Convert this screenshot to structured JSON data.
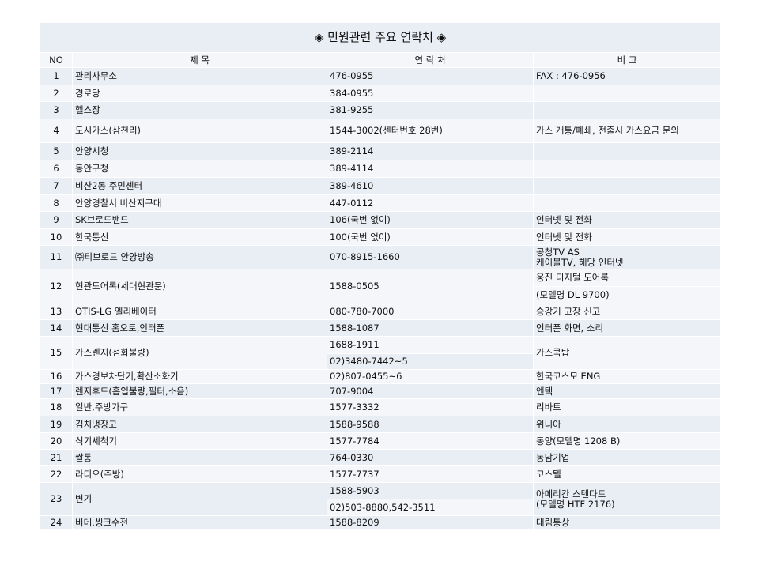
{
  "title": "◈  민원관련 주요 연락처  ◈",
  "headers": {
    "no": "NO",
    "title": "제     목",
    "contact": "연 락 처",
    "note": "비     고"
  },
  "rows": [
    {
      "no": "1",
      "title": "관리사무소",
      "contact": "476-0955",
      "note": "FAX : 476-0956"
    },
    {
      "no": "2",
      "title": "경로당",
      "contact": "384-0955",
      "note": ""
    },
    {
      "no": "3",
      "title": "헬스장",
      "contact": "381-9255",
      "note": ""
    },
    {
      "no": "4",
      "title": "도시가스(삼천리)",
      "contact": "1544-3002(센터번호  28번)",
      "note": "가스 개통/폐쇄, 전출시 가스요금 문의"
    },
    {
      "no": "5",
      "title": "안양시청",
      "contact": "389-2114",
      "note": ""
    },
    {
      "no": "6",
      "title": "동안구청",
      "contact": "389-4114",
      "note": ""
    },
    {
      "no": "7",
      "title": "비산2동 주민센터",
      "contact": "389-4610",
      "note": ""
    },
    {
      "no": "8",
      "title": "안양경찰서 비산지구대",
      "contact": "447-0112",
      "note": ""
    },
    {
      "no": "9",
      "title": "SK브로드밴드",
      "contact": "106(국번 없이)",
      "note": "인터넷 및 전화"
    },
    {
      "no": "10",
      "title": "한국통신",
      "contact": "100(국번 없이)",
      "note": "인터넷 및 전화"
    },
    {
      "no": "11",
      "title": "㈜티브로드 안양방송",
      "contact": "070-8915-1660",
      "note": "공청TV AS",
      "note2": "케이블TV, 해당 인터넷"
    },
    {
      "no": "12",
      "title": "현관도어록(세대현관문)",
      "contact": "1588-0505",
      "note": "웅진 디지털 도어록",
      "note2": "(모델명 DL 9700)"
    },
    {
      "no": "13",
      "title": "OTIS-LG 엘리베이터",
      "contact": "080-780-7000",
      "note": "승강기 고장 신고"
    },
    {
      "no": "14",
      "title": "현대통신 홈오토,인터폰",
      "contact": "1588-1087",
      "note": "인터폰 화면, 소리"
    },
    {
      "no": "15",
      "title": "가스렌지(점화불량)",
      "contact": "1688-1911",
      "contact2": "02)3480-7442~5",
      "note": "가스쿡탑"
    },
    {
      "no": "16",
      "title": "가스경보차단기,확산소화기",
      "contact": "02)807-0455~6",
      "note": "한국코스모 ENG"
    },
    {
      "no": "17",
      "title": "렌지후드(흡입불량,필터,소음)",
      "contact": "707-9004",
      "note": "엔텍"
    },
    {
      "no": "18",
      "title": "일반,주방가구",
      "contact": "1577-3332",
      "note": "리바트"
    },
    {
      "no": "19",
      "title": "김치냉장고",
      "contact": "1588-9588",
      "note": "위니아"
    },
    {
      "no": "20",
      "title": "식기세척기",
      "contact": "1577-7784",
      "note": "동양(모델명 1208 B)"
    },
    {
      "no": "21",
      "title": "쌀통",
      "contact": "764-0330",
      "note": "동남기업"
    },
    {
      "no": "22",
      "title": "라디오(주방)",
      "contact": "1577-7737",
      "note": "코스텔"
    },
    {
      "no": "23",
      "title": "변기",
      "contact": "1588-5903",
      "contact2": "02)503-8880,542-3511",
      "note": "아메리칸 스텐다드",
      "note2": "(모델명 HTF 2176)"
    },
    {
      "no": "24",
      "title": "비데,씽크수전",
      "contact": "1588-8209",
      "note": "대림통상"
    }
  ]
}
